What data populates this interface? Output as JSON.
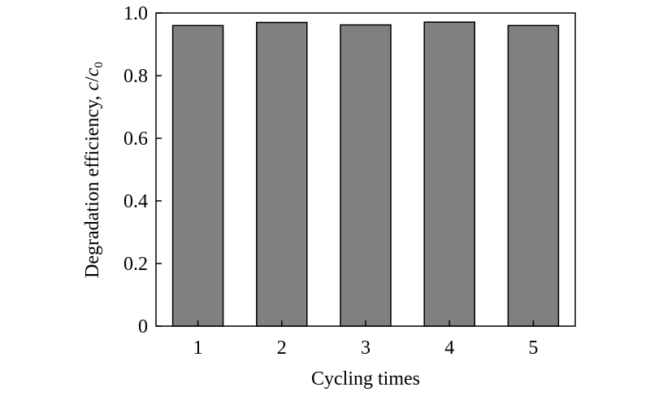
{
  "chart_data": {
    "type": "bar",
    "xlabel": "Cycling times",
    "ylabel": {
      "prefix": "Degradation efficiency, ",
      "c": "c",
      "slash": "/",
      "c0": "c",
      "sub": "0"
    },
    "categories": [
      "1",
      "2",
      "3",
      "4",
      "5"
    ],
    "values": [
      0.96,
      0.97,
      0.962,
      0.971,
      0.96
    ],
    "ylim": [
      0,
      1.0
    ],
    "yticks": [
      "0",
      "0.2",
      "0.4",
      "0.6",
      "0.8",
      "1.0"
    ],
    "yticks_values": [
      0,
      0.2,
      0.4,
      0.6,
      0.8,
      1.0
    ],
    "grid": false,
    "bar_color": "#808080",
    "edge_color": "#000000"
  }
}
